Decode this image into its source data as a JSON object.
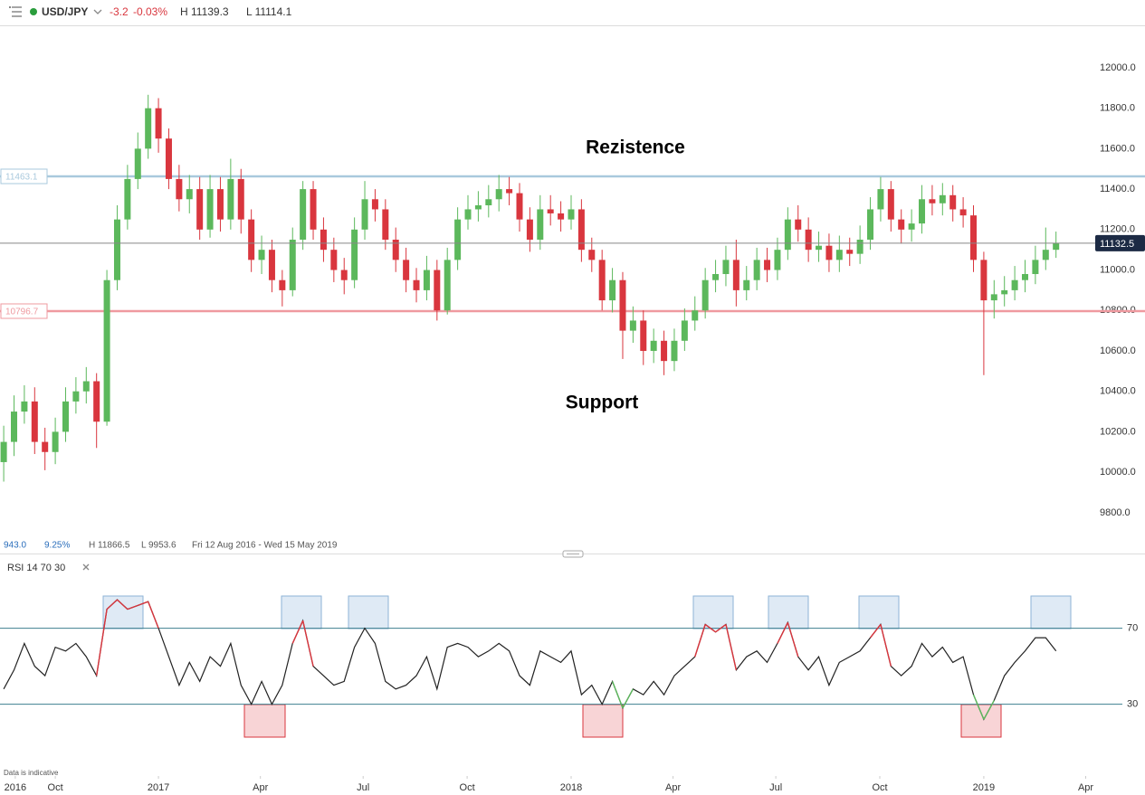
{
  "header": {
    "symbol": "USD/JPY",
    "change": -3.2,
    "change_pct": "-0.03%",
    "high": "H 11139.3",
    "low": "L 11114.1"
  },
  "stats": {
    "value": "943.0",
    "change_pct": "9.25%",
    "high": "H 11866.5",
    "low": "L 9953.6",
    "range": "Fri 12 Aug 2016 - Wed 15 May 2019"
  },
  "footer_note": "Data is indicative",
  "chart_data": {
    "type": "candlestick",
    "annotations": [
      "Rezistence",
      "Support"
    ],
    "up_color": "#5cb85c",
    "down_color": "#d9363e",
    "grid": false,
    "levels": [
      {
        "value": 11463.1,
        "color": "#a9c9dd"
      },
      {
        "value": 10796.7,
        "color": "#ef9aa0"
      }
    ],
    "xlim": [
      2016.616,
      2019.27
    ],
    "xticks": [
      {
        "value": 2016.653,
        "label": "2016"
      },
      {
        "value": 2016.75,
        "label": "Oct"
      },
      {
        "value": 2017.0,
        "label": "2017"
      },
      {
        "value": 2017.247,
        "label": "Apr"
      },
      {
        "value": 2017.496,
        "label": "Jul"
      },
      {
        "value": 2017.748,
        "label": "Oct"
      },
      {
        "value": 2018.0,
        "label": "2018"
      },
      {
        "value": 2018.247,
        "label": "Apr"
      },
      {
        "value": 2018.496,
        "label": "Jul"
      },
      {
        "value": 2018.748,
        "label": "Oct"
      },
      {
        "value": 2019.0,
        "label": "2019"
      },
      {
        "value": 2019.247,
        "label": "Apr"
      }
    ],
    "ylim": [
      9607,
      12201
    ],
    "yticks": [
      {
        "value": 9800,
        "label": "9800.0"
      },
      {
        "value": 10000,
        "label": "10000.0"
      },
      {
        "value": 10200,
        "label": "10200.0"
      },
      {
        "value": 10400,
        "label": "10400.0"
      },
      {
        "value": 10600,
        "label": "10600.0"
      },
      {
        "value": 10800,
        "label": "10800.0"
      },
      {
        "value": 11000,
        "label": "11000.0"
      },
      {
        "value": 11200,
        "label": "11200.0"
      },
      {
        "value": 11400,
        "label": "11400.0"
      },
      {
        "value": 11600,
        "label": "11600.0"
      },
      {
        "value": 11800,
        "label": "11800.0"
      },
      {
        "value": 12000,
        "label": "12000.0"
      }
    ],
    "x": [
      2016.625,
      2016.65,
      2016.675,
      2016.7,
      2016.725,
      2016.75,
      2016.775,
      2016.8,
      2016.825,
      2016.85,
      2016.875,
      2016.9,
      2016.925,
      2016.95,
      2016.975,
      2017.0,
      2017.025,
      2017.05,
      2017.075,
      2017.1,
      2017.125,
      2017.15,
      2017.175,
      2017.2,
      2017.225,
      2017.25,
      2017.275,
      2017.3,
      2017.325,
      2017.35,
      2017.375,
      2017.4,
      2017.425,
      2017.45,
      2017.475,
      2017.5,
      2017.525,
      2017.55,
      2017.575,
      2017.6,
      2017.625,
      2017.65,
      2017.675,
      2017.7,
      2017.725,
      2017.75,
      2017.775,
      2017.8,
      2017.825,
      2017.85,
      2017.875,
      2017.9,
      2017.925,
      2017.95,
      2017.975,
      2018.0,
      2018.025,
      2018.05,
      2018.075,
      2018.1,
      2018.125,
      2018.15,
      2018.175,
      2018.2,
      2018.225,
      2018.25,
      2018.275,
      2018.3,
      2018.325,
      2018.35,
      2018.375,
      2018.4,
      2018.425,
      2018.45,
      2018.475,
      2018.5,
      2018.525,
      2018.55,
      2018.575,
      2018.6,
      2018.625,
      2018.65,
      2018.675,
      2018.7,
      2018.725,
      2018.75,
      2018.775,
      2018.8,
      2018.825,
      2018.85,
      2018.875,
      2018.9,
      2018.925,
      2018.95,
      2018.975,
      2019.0,
      2019.025,
      2019.05,
      2019.075,
      2019.1,
      2019.125,
      2019.15,
      2019.175
    ],
    "open": [
      10050,
      10150,
      10300,
      10350,
      10150,
      10100,
      10200,
      10350,
      10400,
      10450,
      10250,
      10950,
      11250,
      11450,
      11600,
      11800,
      11650,
      11450,
      11350,
      11400,
      11200,
      11400,
      11250,
      11450,
      11250,
      11050,
      11100,
      10950,
      10900,
      11150,
      11400,
      11200,
      11100,
      11000,
      10950,
      11200,
      11350,
      11300,
      11150,
      11050,
      10950,
      10900,
      11000,
      10800,
      11050,
      11250,
      11300,
      11320,
      11350,
      11400,
      11380,
      11250,
      11150,
      11300,
      11280,
      11250,
      11300,
      11100,
      11050,
      10850,
      10950,
      10700,
      10750,
      10600,
      10650,
      10550,
      10650,
      10750,
      10800,
      10950,
      10980,
      11050,
      10900,
      10950,
      11050,
      11000,
      11100,
      11250,
      11200,
      11100,
      11120,
      11050,
      11100,
      11080,
      11150,
      11300,
      11400,
      11250,
      11200,
      11230,
      11350,
      11330,
      11370,
      11300,
      11270,
      11050,
      10850,
      10880,
      10900,
      10950,
      10980,
      11050,
      11100
    ],
    "high": [
      10230,
      10380,
      10430,
      10420,
      10220,
      10270,
      10420,
      10470,
      10520,
      10490,
      11000,
      11320,
      11520,
      11680,
      11866.5,
      11850,
      11700,
      11520,
      11470,
      11460,
      11470,
      11460,
      11550,
      11500,
      11300,
      11170,
      11150,
      11000,
      11210,
      11440,
      11440,
      11260,
      11160,
      11060,
      11260,
      11440,
      11400,
      11350,
      11210,
      11110,
      11010,
      11070,
      11050,
      11110,
      11310,
      11370,
      11390,
      11420,
      11470,
      11460,
      11430,
      11310,
      11370,
      11370,
      11340,
      11370,
      11350,
      11160,
      11100,
      11010,
      10990,
      10820,
      10800,
      10710,
      10700,
      10710,
      10810,
      10870,
      11010,
      11050,
      11120,
      11150,
      11020,
      11110,
      11110,
      11160,
      11310,
      11320,
      11260,
      11190,
      11180,
      11170,
      11160,
      11220,
      11360,
      11460,
      11440,
      11300,
      11300,
      11420,
      11420,
      11430,
      11420,
      11360,
      11320,
      11090,
      10950,
      10970,
      11020,
      11050,
      11120,
      11210,
      11190
    ],
    "low": [
      9953.6,
      10080,
      10240,
      10090,
      10010,
      10040,
      10150,
      10290,
      10340,
      10120,
      10230,
      10900,
      11200,
      11400,
      11550,
      11580,
      11400,
      11290,
      11280,
      11150,
      11160,
      11190,
      11200,
      11180,
      10990,
      10980,
      10890,
      10820,
      10870,
      11100,
      11150,
      11040,
      10940,
      10880,
      10910,
      11150,
      11240,
      11100,
      10990,
      10890,
      10840,
      10850,
      10750,
      10780,
      11000,
      11200,
      11240,
      11260,
      11290,
      11320,
      11190,
      11090,
      11100,
      11220,
      11190,
      11200,
      11040,
      10990,
      10800,
      10790,
      10560,
      10640,
      10530,
      10540,
      10480,
      10500,
      10600,
      10700,
      10760,
      10890,
      10920,
      10820,
      10850,
      10900,
      10940,
      10950,
      11050,
      11140,
      11040,
      11040,
      10990,
      10990,
      11020,
      11030,
      11100,
      11240,
      11190,
      11130,
      11140,
      11180,
      11270,
      11270,
      11240,
      11210,
      10990,
      10480,
      10760,
      10820,
      10850,
      10890,
      10930,
      11000,
      11060
    ],
    "close": [
      10150,
      10300,
      10350,
      10150,
      10100,
      10200,
      10350,
      10400,
      10450,
      10250,
      10950,
      11250,
      11450,
      11600,
      11800,
      11650,
      11450,
      11350,
      11400,
      11200,
      11400,
      11250,
      11450,
      11250,
      11050,
      11100,
      10950,
      10900,
      11150,
      11400,
      11200,
      11100,
      11000,
      10950,
      11200,
      11350,
      11300,
      11150,
      11050,
      10950,
      10900,
      11000,
      10800,
      11050,
      11250,
      11300,
      11320,
      11350,
      11400,
      11380,
      11250,
      11150,
      11300,
      11280,
      11250,
      11300,
      11100,
      11050,
      10850,
      10950,
      10700,
      10750,
      10600,
      10650,
      10550,
      10650,
      10750,
      10800,
      10950,
      10980,
      11050,
      10900,
      10950,
      11050,
      11000,
      11100,
      11250,
      11200,
      11100,
      11120,
      11050,
      11100,
      11080,
      11150,
      11300,
      11400,
      11250,
      11200,
      11230,
      11350,
      11330,
      11370,
      11300,
      11270,
      11050,
      10850,
      10880,
      10900,
      10950,
      10980,
      11050,
      11100,
      11132.5
    ],
    "rsi": {
      "title": "RSI 14 70 30",
      "color": "#222222",
      "over_color": "#d9363e",
      "under_color": "#5cb85c",
      "level_color": "#3d7f8f",
      "ylim": [
        -4,
        96
      ],
      "yticks": [
        30,
        70
      ],
      "values": [
        38,
        48,
        62,
        50,
        45,
        60,
        58,
        62,
        55,
        45,
        80,
        85,
        80,
        82,
        84,
        70,
        55,
        40,
        52,
        42,
        55,
        50,
        62,
        40,
        30,
        42,
        30,
        40,
        62,
        74,
        50,
        45,
        40,
        42,
        60,
        70,
        62,
        42,
        38,
        40,
        45,
        55,
        38,
        60,
        62,
        60,
        55,
        58,
        62,
        58,
        45,
        40,
        58,
        55,
        52,
        58,
        35,
        40,
        30,
        42,
        28,
        38,
        35,
        42,
        35,
        45,
        50,
        55,
        72,
        68,
        72,
        48,
        55,
        58,
        52,
        62,
        73,
        55,
        48,
        55,
        40,
        52,
        55,
        58,
        65,
        72,
        50,
        45,
        50,
        62,
        55,
        60,
        52,
        55,
        35,
        22,
        32,
        45,
        52,
        58,
        65,
        65,
        58
      ]
    }
  }
}
